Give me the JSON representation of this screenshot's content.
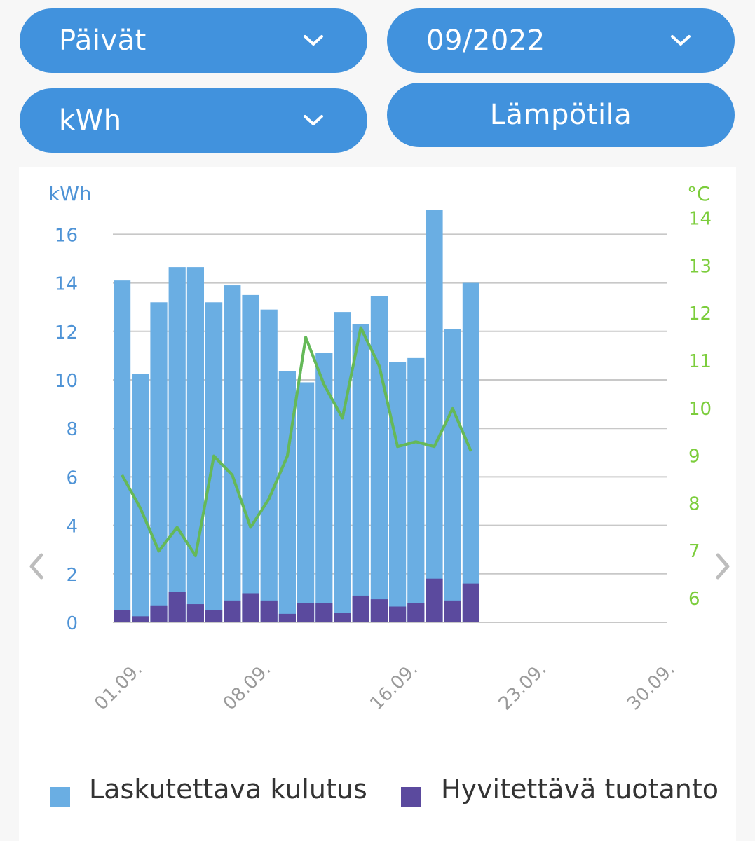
{
  "controls": {
    "period_label": "Päivät",
    "month_label": "09/2022",
    "unit_label": "kWh",
    "temperature_button": "Lämpötila"
  },
  "colors": {
    "pill": "#4192dd",
    "consumption": "#6aaee3",
    "production": "#5b4a9e",
    "temperature": "#7ccd3c",
    "left_axis_text": "#4e93d6",
    "right_axis_text": "#7ccd3c",
    "grid": "#c8c8c8"
  },
  "icons": {
    "dropdown": "chevron-down-icon",
    "prev": "chevron-left-icon",
    "next": "chevron-right-icon"
  },
  "chart_data": {
    "type": "bar",
    "stacked": true,
    "y_unit_left": "kWh",
    "y_unit_right": "°C",
    "ylim": [
      0,
      16
    ],
    "y2lim": [
      6,
      14
    ],
    "y_ticks": [
      "0",
      "2",
      "4",
      "6",
      "8",
      "10",
      "12",
      "14",
      "16"
    ],
    "y2_ticks": [
      "6",
      "7",
      "8",
      "9",
      "10",
      "11",
      "12",
      "13",
      "14"
    ],
    "x_days": 30,
    "x_tick_labels": [
      {
        "day": 1,
        "label": "01.09."
      },
      {
        "day": 8,
        "label": "08.09."
      },
      {
        "day": 16,
        "label": "16.09."
      },
      {
        "day": 23,
        "label": "23.09."
      },
      {
        "day": 30,
        "label": "30.09."
      }
    ],
    "days": [
      1,
      2,
      3,
      4,
      5,
      6,
      7,
      8,
      9,
      10,
      11,
      12,
      13,
      14,
      15,
      16,
      17,
      18,
      19,
      20
    ],
    "series": [
      {
        "name": "Laskutettava kulutus",
        "values": [
          13.6,
          10.0,
          12.5,
          13.4,
          13.9,
          12.7,
          13.0,
          12.3,
          12.0,
          10.0,
          9.1,
          10.3,
          12.4,
          11.2,
          12.5,
          10.1,
          10.1,
          15.2,
          11.2,
          12.4
        ]
      },
      {
        "name": "Hyvitettävä tuotanto",
        "values": [
          0.5,
          0.25,
          0.7,
          1.25,
          0.75,
          0.5,
          0.9,
          1.2,
          0.9,
          0.35,
          0.8,
          0.8,
          0.4,
          1.1,
          0.95,
          0.65,
          0.8,
          1.8,
          0.9,
          1.6
        ]
      }
    ],
    "temperature": {
      "axis": "right",
      "values": [
        9.1,
        8.4,
        7.5,
        8.0,
        7.4,
        9.5,
        9.1,
        8.0,
        8.6,
        9.5,
        12.0,
        11.0,
        10.3,
        12.2,
        11.4,
        9.7,
        9.8,
        9.7,
        10.5,
        9.6
      ]
    }
  },
  "legend": {
    "item1": "Laskutettava kulutus",
    "item2": "Hyvitettävä tuotanto"
  }
}
